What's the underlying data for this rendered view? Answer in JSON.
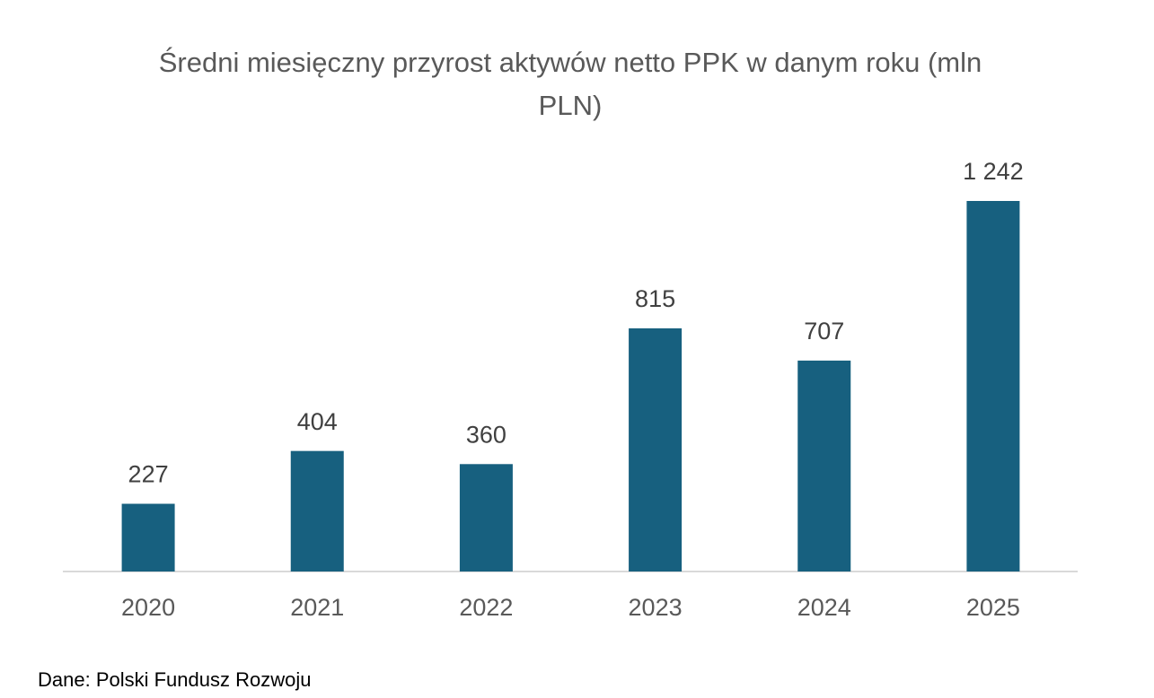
{
  "chart_data": {
    "type": "bar",
    "title": "Średni miesięczny przyrost aktywów netto PPK w danym roku (mln PLN)",
    "categories": [
      "2020",
      "2021",
      "2022",
      "2023",
      "2024",
      "2025"
    ],
    "values": [
      227,
      404,
      360,
      815,
      707,
      1242
    ],
    "value_labels": [
      "227",
      "404",
      "360",
      "815",
      "707",
      "1 242"
    ],
    "color": "#17607f",
    "source": "Dane: Polski Fundusz Rozwoju"
  }
}
